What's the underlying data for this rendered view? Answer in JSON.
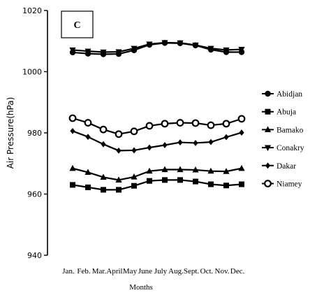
{
  "chart_data": {
    "type": "line",
    "panel_label": "C",
    "xlabel": "Months",
    "ylabel": "Air Pressure(hPa)",
    "ylim": [
      940,
      1020
    ],
    "yticks": [
      940,
      960,
      980,
      1000,
      1020
    ],
    "categories": [
      "Jan.",
      "Feb.",
      "Mar.",
      "April",
      "May",
      "June",
      "July",
      "Aug.",
      "Sept.",
      "Oct.",
      "Nov.",
      "Dec."
    ],
    "grid": false,
    "legend_position": "right",
    "series": [
      {
        "name": "Abidjan",
        "marker": "circle",
        "values": [
          1006.3,
          1005.9,
          1005.7,
          1005.8,
          1007.0,
          1008.8,
          1009.4,
          1009.3,
          1008.6,
          1007.2,
          1006.4,
          1006.4
        ]
      },
      {
        "name": "Abuja",
        "marker": "square",
        "values": [
          963.0,
          962.2,
          961.4,
          961.4,
          962.7,
          964.3,
          964.6,
          964.6,
          964.1,
          963.2,
          962.8,
          963.2
        ]
      },
      {
        "name": "Bamako",
        "marker": "triangle-up",
        "values": [
          968.4,
          967.1,
          965.5,
          964.6,
          965.6,
          967.5,
          968.0,
          968.0,
          967.9,
          967.5,
          967.4,
          968.4
        ]
      },
      {
        "name": "Conakry",
        "marker": "triangle-down",
        "values": [
          1007.1,
          1006.7,
          1006.4,
          1006.5,
          1007.6,
          1009.0,
          1009.5,
          1009.4,
          1008.7,
          1007.6,
          1007.1,
          1007.3
        ]
      },
      {
        "name": "Dakar",
        "marker": "diamond",
        "values": [
          980.6,
          978.7,
          976.3,
          974.2,
          974.3,
          975.2,
          976.0,
          976.9,
          976.7,
          977.0,
          978.6,
          980.1
        ]
      },
      {
        "name": "Niamey",
        "marker": "open-circle",
        "values": [
          984.8,
          983.3,
          981.1,
          979.6,
          980.5,
          982.3,
          983.0,
          983.3,
          983.2,
          982.5,
          983.0,
          984.6
        ]
      }
    ]
  }
}
